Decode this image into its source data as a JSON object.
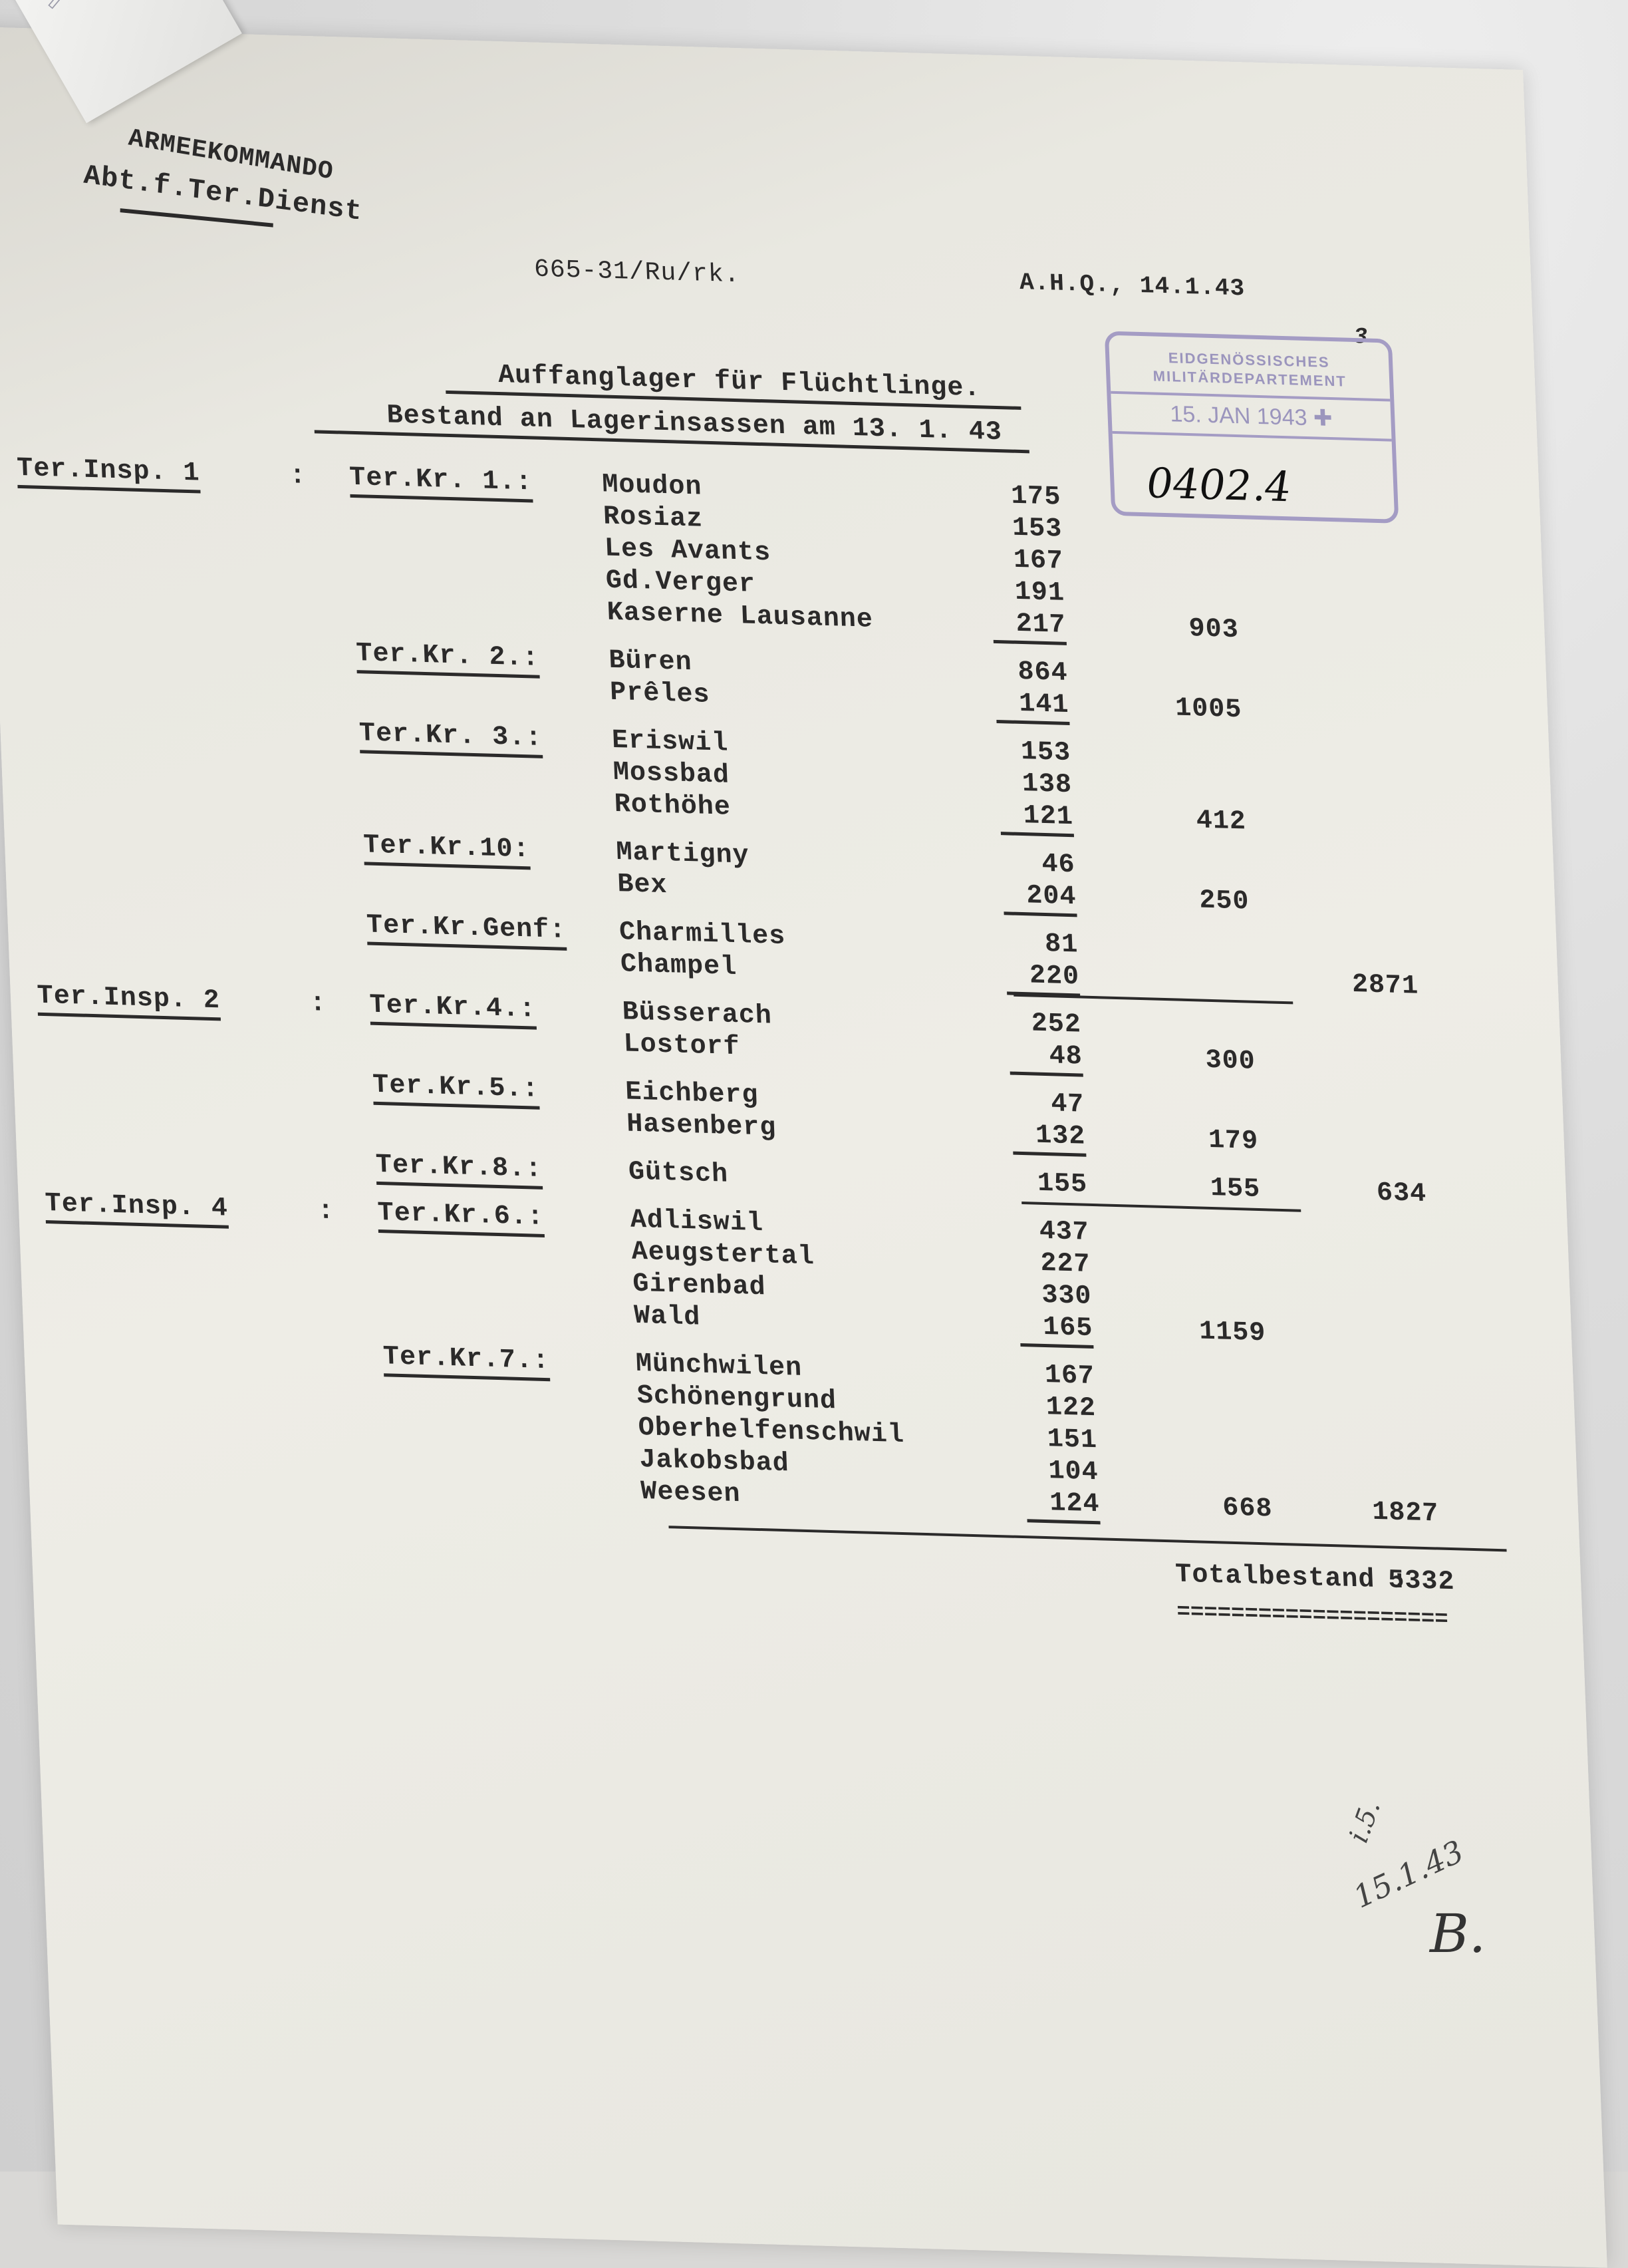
{
  "header": {
    "office_line1": "ARMEEKOMMANDO",
    "office_line2": "Abt.f.Ter.Dienst",
    "reference": "665-31/Ru/rk.",
    "place_date": "A.H.Q., 14.1.43",
    "page_number": "3"
  },
  "stamp": {
    "authority": "EIDGENÖSSISCHES MILITÄRDEPARTEMENT",
    "date": "15. JAN 1943",
    "emblem": "swiss-cross-icon",
    "handwritten_file_number": "0402.4",
    "color": "#a49cc4"
  },
  "title": "Auffanglager für Flüchtlinge.",
  "subtitle": "Bestand an Lagerinsassen am 13. 1. 43",
  "inspections": [
    {
      "label": "Ter.Insp. 1",
      "total": "2871",
      "kreise": [
        {
          "label": "Ter.Kr. 1.:",
          "subtotal": "903",
          "camps": [
            {
              "name": "Moudon",
              "count": "175"
            },
            {
              "name": "Rosiaz",
              "count": "153"
            },
            {
              "name": "Les Avants",
              "count": "167"
            },
            {
              "name": "Gd.Verger",
              "count": "191"
            },
            {
              "name": "Kaserne Lausanne",
              "count": "217"
            }
          ]
        },
        {
          "label": "Ter.Kr. 2.:",
          "subtotal": "1005",
          "camps": [
            {
              "name": "Büren",
              "count": "864"
            },
            {
              "name": "Prêles",
              "count": "141"
            }
          ]
        },
        {
          "label": "Ter.Kr. 3.:",
          "subtotal": "412",
          "camps": [
            {
              "name": "Eriswil",
              "count": "153"
            },
            {
              "name": "Mossbad",
              "count": "138"
            },
            {
              "name": "Rothöhe",
              "count": "121"
            }
          ]
        },
        {
          "label": "Ter.Kr.10:",
          "subtotal": "250",
          "camps": [
            {
              "name": "Martigny",
              "count": "46"
            },
            {
              "name": "Bex",
              "count": "204"
            }
          ]
        },
        {
          "label": "Ter.Kr.Genf:",
          "subtotal": "",
          "camps": [
            {
              "name": "Charmilles",
              "count": "81"
            },
            {
              "name": "Champel",
              "count": "220"
            }
          ]
        }
      ]
    },
    {
      "label": "Ter.Insp. 2",
      "total": "634",
      "kreise": [
        {
          "label": "Ter.Kr.4.:",
          "subtotal": "300",
          "camps": [
            {
              "name": "Büsserach",
              "count": "252"
            },
            {
              "name": "Lostorf",
              "count": "48"
            }
          ]
        },
        {
          "label": "Ter.Kr.5.:",
          "subtotal": "179",
          "camps": [
            {
              "name": "Eichberg",
              "count": "47"
            },
            {
              "name": "Hasenberg",
              "count": "132"
            }
          ]
        },
        {
          "label": "Ter.Kr.8.:",
          "subtotal": "155",
          "camps": [
            {
              "name": "Gütsch",
              "count": "155"
            }
          ]
        }
      ]
    },
    {
      "label": "Ter.Insp. 4",
      "total": "1827",
      "kreise": [
        {
          "label": "Ter.Kr.6.:",
          "subtotal": "1159",
          "camps": [
            {
              "name": "Adliswil",
              "count": "437"
            },
            {
              "name": "Aeugstertal",
              "count": "227"
            },
            {
              "name": "Girenbad",
              "count": "330"
            },
            {
              "name": "Wald",
              "count": "165"
            }
          ]
        },
        {
          "label": "Ter.Kr.7.:",
          "subtotal": "668",
          "camps": [
            {
              "name": "Münchwilen",
              "count": "167"
            },
            {
              "name": "Schönengrund",
              "count": "122"
            },
            {
              "name": "Oberhelfenschwil",
              "count": "151"
            },
            {
              "name": "Jakobsbad",
              "count": "104"
            },
            {
              "name": "Weesen",
              "count": "124"
            }
          ]
        }
      ]
    }
  ],
  "total": {
    "label": "Totalbestand :",
    "value": "5332",
    "double_rule": "===================="
  },
  "handwritten_note": {
    "line1": "i.5.",
    "line2": "15.1.43",
    "initial": "B."
  }
}
